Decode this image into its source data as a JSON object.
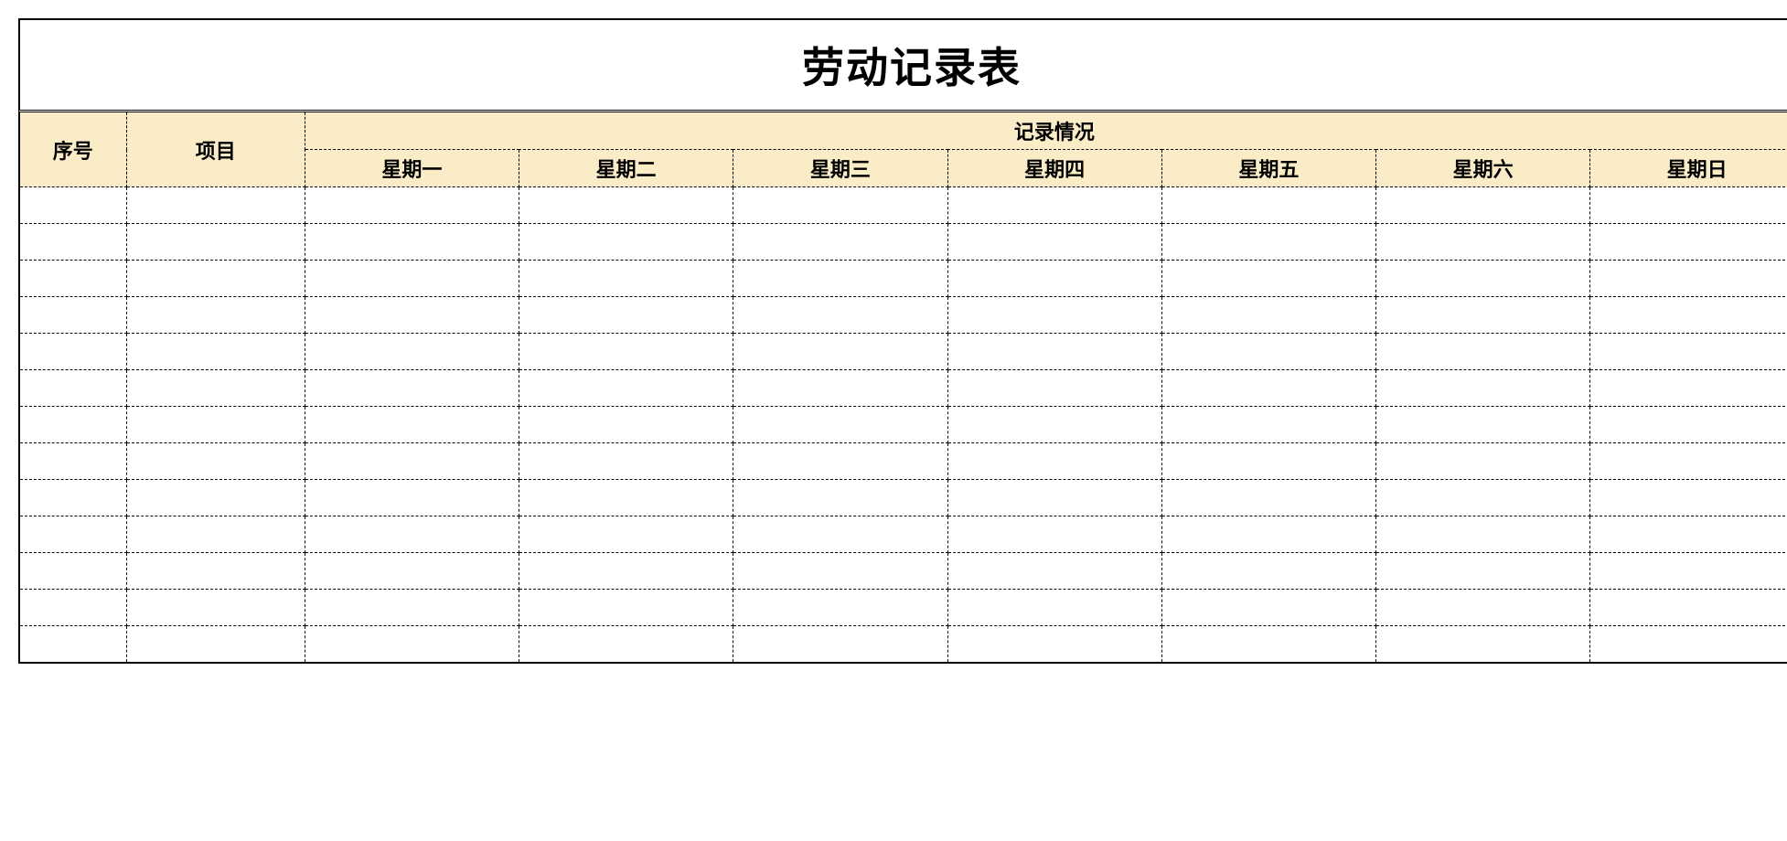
{
  "title": "劳动记录表",
  "table": {
    "type": "table",
    "header_bg": "#fbecc8",
    "border_color": "#000000",
    "border_style_inner": "dashed",
    "border_style_outer": "solid",
    "background_color": "#ffffff",
    "text_color": "#000000",
    "title_fontsize": 46,
    "header_fontsize": 22,
    "columns": {
      "seq": "序号",
      "item": "项目",
      "record_group": "记录情况",
      "days": [
        "星期一",
        "星期二",
        "星期三",
        "星期四",
        "星期五",
        "星期六",
        "星期日"
      ]
    },
    "column_widths_pct": [
      6,
      10,
      12,
      12,
      12,
      12,
      12,
      12,
      12
    ],
    "num_data_rows": 13,
    "rows": [
      [
        "",
        "",
        "",
        "",
        "",
        "",
        "",
        "",
        ""
      ],
      [
        "",
        "",
        "",
        "",
        "",
        "",
        "",
        "",
        ""
      ],
      [
        "",
        "",
        "",
        "",
        "",
        "",
        "",
        "",
        ""
      ],
      [
        "",
        "",
        "",
        "",
        "",
        "",
        "",
        "",
        ""
      ],
      [
        "",
        "",
        "",
        "",
        "",
        "",
        "",
        "",
        ""
      ],
      [
        "",
        "",
        "",
        "",
        "",
        "",
        "",
        "",
        ""
      ],
      [
        "",
        "",
        "",
        "",
        "",
        "",
        "",
        "",
        ""
      ],
      [
        "",
        "",
        "",
        "",
        "",
        "",
        "",
        "",
        ""
      ],
      [
        "",
        "",
        "",
        "",
        "",
        "",
        "",
        "",
        ""
      ],
      [
        "",
        "",
        "",
        "",
        "",
        "",
        "",
        "",
        ""
      ],
      [
        "",
        "",
        "",
        "",
        "",
        "",
        "",
        "",
        ""
      ],
      [
        "",
        "",
        "",
        "",
        "",
        "",
        "",
        "",
        ""
      ],
      [
        "",
        "",
        "",
        "",
        "",
        "",
        "",
        "",
        ""
      ]
    ]
  }
}
